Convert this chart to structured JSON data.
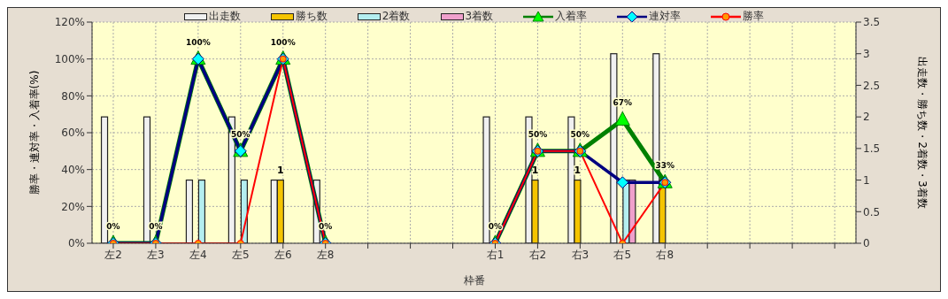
{
  "chart_data": {
    "type": "bar",
    "xlabel": "枠番",
    "ylabel": "勝率・連対率・入着率(%)",
    "y2label": "出走数・勝ち数・2着数・3着数",
    "categories": [
      "左2",
      "左3",
      "左4",
      "左5",
      "左6",
      "左8",
      null,
      null,
      null,
      "右1",
      "右2",
      "右3",
      "右5",
      "右8",
      null,
      null,
      null,
      null
    ],
    "series": [
      {
        "name": "出走数",
        "axis": "y2",
        "color": "#f0f0f0",
        "values": [
          2,
          2,
          1,
          2,
          1,
          1,
          null,
          null,
          null,
          2,
          2,
          2,
          3,
          3,
          null,
          null,
          null,
          null
        ]
      },
      {
        "name": "勝ち数",
        "axis": "y2",
        "color": "#f5c400",
        "values": [
          0,
          0,
          0,
          0,
          1,
          0,
          null,
          null,
          null,
          0,
          1,
          1,
          0,
          1,
          null,
          null,
          null,
          null
        ],
        "value_labels": [
          null,
          null,
          null,
          null,
          "1",
          null,
          null,
          null,
          null,
          null,
          "1",
          "1",
          null,
          null,
          null,
          null,
          null,
          null
        ]
      },
      {
        "name": "2着数",
        "axis": "y2",
        "color": "#b4eef0",
        "values": [
          0,
          0,
          1,
          1,
          0,
          0,
          null,
          null,
          null,
          0,
          0,
          0,
          1,
          0,
          null,
          null,
          null,
          null
        ]
      },
      {
        "name": "3着数",
        "axis": "y2",
        "color": "#f0a0cc",
        "values": [
          0,
          0,
          0,
          0,
          0,
          0,
          null,
          null,
          null,
          0,
          0,
          0,
          1,
          0,
          null,
          null,
          null,
          null
        ]
      },
      {
        "name": "入着率",
        "type": "line",
        "marker": "triangle",
        "color": "#008000",
        "values": [
          0,
          0,
          100,
          50,
          100,
          0,
          null,
          null,
          null,
          0,
          50,
          50,
          67,
          33,
          null,
          null,
          null,
          null
        ],
        "value_labels": [
          "0%",
          "0%",
          "100%",
          "50%",
          "100%",
          "0%",
          null,
          null,
          null,
          "0%",
          "50%",
          "50%",
          "67%",
          "33%",
          null,
          null,
          null,
          null
        ]
      },
      {
        "name": "連対率",
        "type": "line",
        "marker": "diamond",
        "color": "#000080",
        "values": [
          0,
          0,
          100,
          50,
          100,
          0,
          null,
          null,
          null,
          0,
          50,
          50,
          33,
          33,
          null,
          null,
          null,
          null
        ]
      },
      {
        "name": "勝率",
        "type": "line",
        "marker": "circle",
        "color": "#ff0000",
        "values": [
          0,
          0,
          0,
          0,
          100,
          0,
          null,
          null,
          null,
          0,
          50,
          50,
          0,
          33,
          null,
          null,
          null,
          null
        ]
      }
    ],
    "ylim": [
      0,
      120
    ],
    "yticks": [
      {
        "value": 0,
        "label": "0%"
      },
      {
        "value": 20,
        "label": "20%"
      },
      {
        "value": 40,
        "label": "40%"
      },
      {
        "value": 60,
        "label": "60%"
      },
      {
        "value": 80,
        "label": "80%"
      },
      {
        "value": 100,
        "label": "100%"
      },
      {
        "value": 120,
        "label": "120%"
      }
    ],
    "y2lim": [
      0,
      3.5
    ],
    "y2ticks": [
      0,
      0.5,
      1,
      1.5,
      2,
      2.5,
      3,
      3.5
    ],
    "grid": true,
    "legend": "top"
  }
}
